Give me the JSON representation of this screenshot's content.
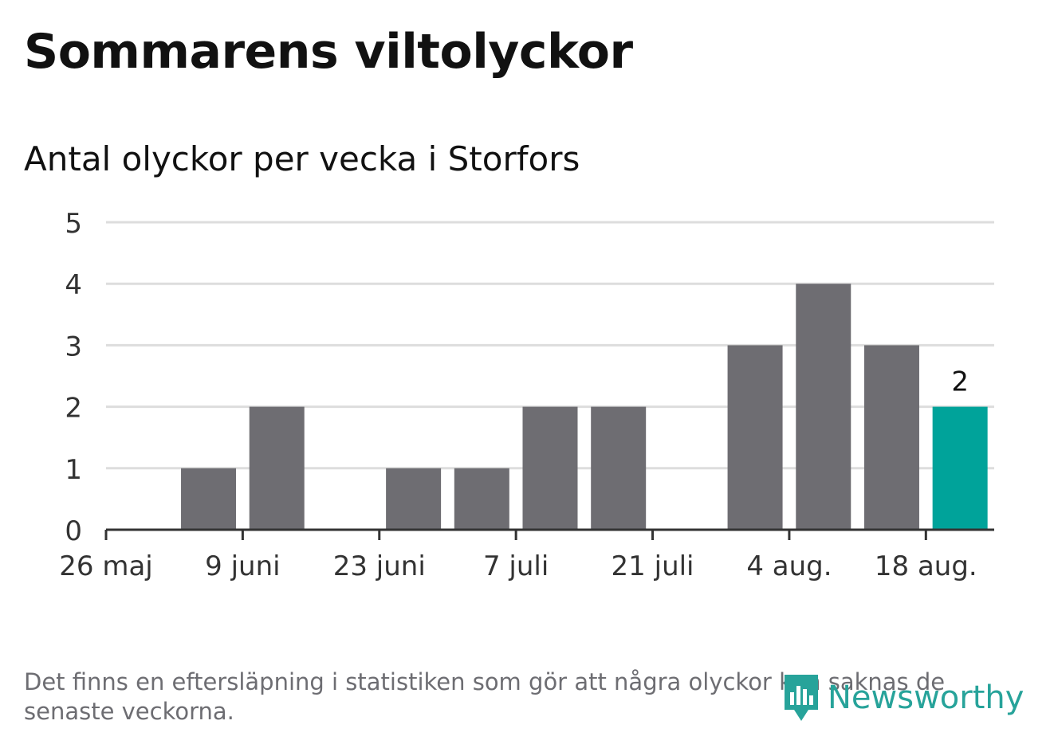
{
  "header": {
    "title": "Sommarens viltolyckor",
    "subtitle": "Antal olyckor per vecka i Storfors"
  },
  "footer": {
    "note": "Det finns en eftersläpning i statistiken som gör att några olyckor kan saknas de senaste veckorna.",
    "brand": "Newsworthy"
  },
  "colors": {
    "bar": "#6e6d72",
    "highlight": "#00a39a",
    "grid": "#dddddd",
    "axis": "#333333",
    "brand": "#27a39a"
  },
  "chart_data": {
    "type": "bar",
    "title": "Antal olyckor per vecka i Storfors",
    "ylim": [
      0,
      5
    ],
    "yticks": [
      0,
      1,
      2,
      3,
      4,
      5
    ],
    "xticks": [
      "26 maj",
      "9 juni",
      "23 juni",
      "7 juli",
      "21 juli",
      "4 aug.",
      "18 aug."
    ],
    "weeks": [
      "26 maj",
      "2 juni",
      "9 juni",
      "16 juni",
      "23 juni",
      "30 juni",
      "7 juli",
      "14 juli",
      "21 juli",
      "28 juli",
      "4 aug.",
      "11 aug.",
      "18 aug."
    ],
    "values": [
      0,
      1,
      2,
      0,
      1,
      1,
      2,
      2,
      0,
      3,
      4,
      3,
      2
    ],
    "highlight_index": 12,
    "data_labels": [
      {
        "index": 12,
        "text": "2"
      }
    ],
    "grid": true
  }
}
